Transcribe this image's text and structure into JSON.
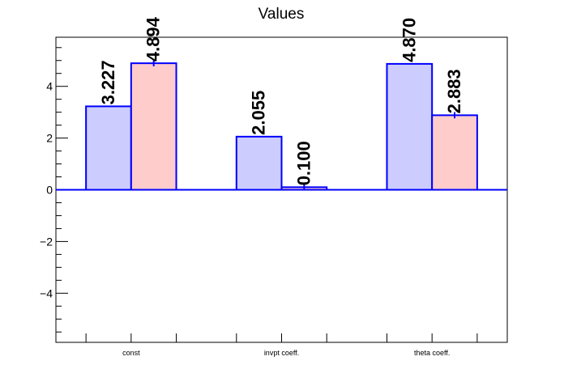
{
  "chart_data": {
    "type": "bar",
    "title": "Values",
    "xlabel": "",
    "ylabel": "",
    "categories": [
      "const",
      "invpt coeff.",
      "theta coeff."
    ],
    "series": [
      {
        "values": [
          3.227,
          2.055,
          4.87
        ],
        "errors": [
          0.0,
          0.0,
          0.0
        ],
        "labels": [
          "3.227",
          "2.055",
          "4.870"
        ],
        "fill": "#ccccff"
      },
      {
        "values": [
          4.894,
          0.1,
          2.883
        ],
        "errors": [
          0.12,
          0.12,
          0.12
        ],
        "labels": [
          "4.894",
          "0.100",
          "2.883"
        ],
        "fill": "#ffcccc"
      }
    ],
    "ylim": [
      -5.9,
      5.9
    ],
    "yticks": [
      -4,
      -2,
      0,
      2,
      4
    ],
    "ytick_labels": [
      "−4",
      "−2",
      "0",
      "2",
      "4"
    ],
    "edge_color": "#0000ff",
    "grid": false,
    "legend": "none"
  }
}
